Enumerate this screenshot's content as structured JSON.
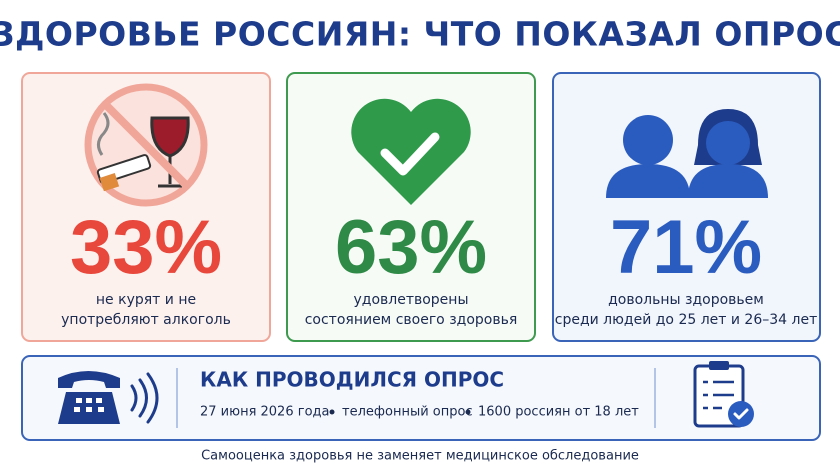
{
  "header": {
    "title": "ЗДОРОВЬЕ РОССИЯН: ЧТО ПОКАЗАЛ ОПРОС"
  },
  "cards": [
    {
      "value": "33%",
      "caption": [
        "не курят и не",
        "употребляют алкоголь"
      ]
    },
    {
      "value": "63%",
      "caption": [
        "удовлетворены",
        "состоянием своего здоровья"
      ]
    },
    {
      "value": "71%",
      "caption": [
        "довольны здоровьем",
        "среди людей до 25 лет и 26–34 лет"
      ]
    }
  ],
  "method": {
    "title": "КАК ПРОВОДИЛСЯ ОПРОС",
    "items": [
      "27 июня 2026 года",
      "телефонный опрос",
      "1600 россиян от 18 лет"
    ]
  },
  "footer": {
    "note": "Самооценка здоровья не заменяет медицинское обследование"
  }
}
